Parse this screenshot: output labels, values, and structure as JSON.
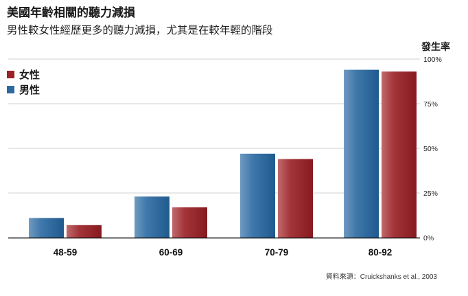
{
  "chart_data": {
    "type": "bar",
    "title": "美國年齡相關的聽力減損",
    "subtitle": "男性較女性經歷更多的聽力減損，尤其是在較年輕的階段",
    "ylabel": "發生率",
    "categories": [
      "48-59",
      "60-69",
      "70-79",
      "80-92"
    ],
    "series": [
      {
        "name": "男性",
        "color": "#2b6aa0",
        "values": [
          11,
          23,
          47,
          94
        ]
      },
      {
        "name": "女性",
        "color": "#9b2226",
        "values": [
          7,
          17,
          44,
          93
        ]
      }
    ],
    "legend_order": [
      "女性",
      "男性"
    ],
    "ylim": [
      0,
      100
    ],
    "yticks": [
      {
        "value": 100,
        "label": "100%"
      },
      {
        "value": 75,
        "label": "75%"
      },
      {
        "value": 50,
        "label": "50%"
      },
      {
        "value": 25,
        "label": "25%"
      },
      {
        "value": 0,
        "label": "0%"
      }
    ],
    "grid": true,
    "legend_position": "top-left",
    "source": "資料來源：Cruickshanks et al., 2003"
  }
}
